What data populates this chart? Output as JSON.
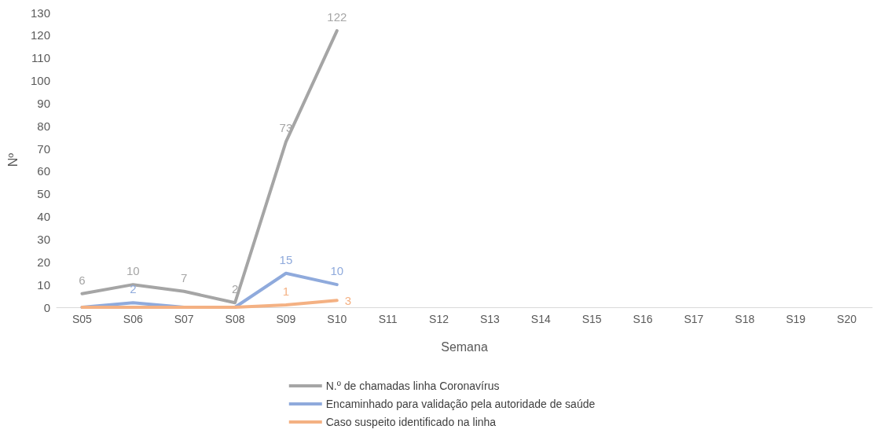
{
  "chart_data": {
    "type": "line",
    "xlabel": "Semana",
    "ylabel": "Nº",
    "categories": [
      "S05",
      "S06",
      "S07",
      "S08",
      "S09",
      "S10",
      "S11",
      "S12",
      "S13",
      "S14",
      "S15",
      "S16",
      "S17",
      "S18",
      "S19",
      "S20"
    ],
    "series": [
      {
        "name": "N.º de chamadas linha Coronavírus",
        "color": "#a5a5a5",
        "values": [
          6,
          10,
          7,
          2,
          73,
          122,
          null,
          null,
          null,
          null,
          null,
          null,
          null,
          null,
          null,
          null
        ],
        "value_labels": [
          "6",
          "10",
          "7",
          "2",
          "73",
          "122",
          null,
          null,
          null,
          null,
          null,
          null,
          null,
          null,
          null,
          null
        ]
      },
      {
        "name": "Encaminhado para validação pela autoridade de saúde",
        "color": "#8faadc",
        "values": [
          0,
          2,
          0,
          0,
          15,
          10,
          null,
          null,
          null,
          null,
          null,
          null,
          null,
          null,
          null,
          null
        ],
        "value_labels": [
          null,
          "2",
          null,
          null,
          "15",
          "10",
          null,
          null,
          null,
          null,
          null,
          null,
          null,
          null,
          null,
          null
        ]
      },
      {
        "name": "Caso suspeito identificado na linha",
        "color": "#f4b183",
        "values": [
          0,
          0,
          0,
          0,
          1,
          3,
          null,
          null,
          null,
          null,
          null,
          null,
          null,
          null,
          null,
          null
        ],
        "value_labels": [
          null,
          null,
          null,
          null,
          "1",
          "3",
          null,
          null,
          null,
          null,
          null,
          null,
          null,
          null,
          null,
          null
        ]
      }
    ],
    "ylim": [
      0,
      130
    ],
    "yticks": [
      0,
      10,
      20,
      30,
      40,
      50,
      60,
      70,
      80,
      90,
      100,
      110,
      120,
      130
    ],
    "grid": false,
    "legend": "bottom",
    "marker": "none",
    "line_style": "solid"
  }
}
